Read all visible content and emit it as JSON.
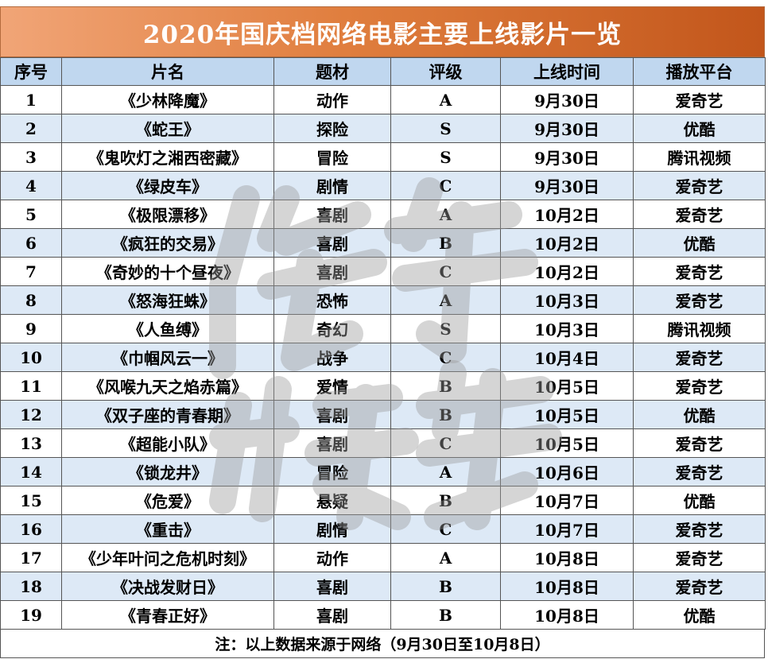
{
  "title": "2020年国庆档网络电影主要上线影片一览",
  "headers": [
    "序号",
    "片名",
    "题材",
    "评级",
    "上线时间",
    "播放平台"
  ],
  "rows": [
    {
      "idx": "1",
      "name": "《少林降魔》",
      "genre": "动作",
      "rating": "A",
      "date": "9月30日",
      "platform": "爱奇艺"
    },
    {
      "idx": "2",
      "name": "《蛇王》",
      "genre": "探险",
      "rating": "S",
      "date": "9月30日",
      "platform": "优酷"
    },
    {
      "idx": "3",
      "name": "《鬼吹灯之湘西密藏》",
      "genre": "冒险",
      "rating": "S",
      "date": "9月30日",
      "platform": "腾讯视频"
    },
    {
      "idx": "4",
      "name": "《绿皮车》",
      "genre": "剧情",
      "rating": "C",
      "date": "9月30日",
      "platform": "爱奇艺"
    },
    {
      "idx": "5",
      "name": "《极限漂移》",
      "genre": "喜剧",
      "rating": "A",
      "date": "10月2日",
      "platform": "爱奇艺"
    },
    {
      "idx": "6",
      "name": "《疯狂的交易》",
      "genre": "喜剧",
      "rating": "B",
      "date": "10月2日",
      "platform": "优酷"
    },
    {
      "idx": "7",
      "name": "《奇妙的十个昼夜》",
      "genre": "喜剧",
      "rating": "C",
      "date": "10月2日",
      "platform": "爱奇艺"
    },
    {
      "idx": "8",
      "name": "《怒海狂蛛》",
      "genre": "恐怖",
      "rating": "A",
      "date": "10月3日",
      "platform": "爱奇艺"
    },
    {
      "idx": "9",
      "name": "《人鱼缚》",
      "genre": "奇幻",
      "rating": "S",
      "date": "10月3日",
      "platform": "腾讯视频"
    },
    {
      "idx": "10",
      "name": "《巾帼风云一》",
      "genre": "战争",
      "rating": "C",
      "date": "10月4日",
      "platform": "爱奇艺"
    },
    {
      "idx": "11",
      "name": "《风喉九天之焰赤篇》",
      "genre": "爱情",
      "rating": "B",
      "date": "10月5日",
      "platform": "爱奇艺"
    },
    {
      "idx": "12",
      "name": "《双子座的青春期》",
      "genre": "喜剧",
      "rating": "B",
      "date": "10月5日",
      "platform": "优酷"
    },
    {
      "idx": "13",
      "name": "《超能小队》",
      "genre": "喜剧",
      "rating": "C",
      "date": "10月5日",
      "platform": "爱奇艺"
    },
    {
      "idx": "14",
      "name": "《锁龙井》",
      "genre": "冒险",
      "rating": "A",
      "date": "10月6日",
      "platform": "爱奇艺"
    },
    {
      "idx": "15",
      "name": "《危爱》",
      "genre": "悬疑",
      "rating": "B",
      "date": "10月7日",
      "platform": "优酷"
    },
    {
      "idx": "16",
      "name": "《重击》",
      "genre": "剧情",
      "rating": "C",
      "date": "10月7日",
      "platform": "爱奇艺"
    },
    {
      "idx": "17",
      "name": "《少年叶问之危机时刻》",
      "genre": "动作",
      "rating": "A",
      "date": "10月8日",
      "platform": "爱奇艺"
    },
    {
      "idx": "18",
      "name": "《决战发财日》",
      "genre": "喜剧",
      "rating": "B",
      "date": "10月8日",
      "platform": "爱奇艺"
    },
    {
      "idx": "19",
      "name": "《青春正好》",
      "genre": "喜剧",
      "rating": "B",
      "date": "10月8日",
      "platform": "优酷"
    }
  ],
  "note": "注：以上数据来源于网络（9月30日至10月8日）",
  "colors": {
    "title_gradient_start": "#f1a577",
    "title_gradient_end": "#c2561b",
    "header_bg": "#c0d7ef",
    "stripe_bg": "#dde9f6",
    "watermark": "#9a9a9a"
  },
  "watermark_text": "传媒"
}
